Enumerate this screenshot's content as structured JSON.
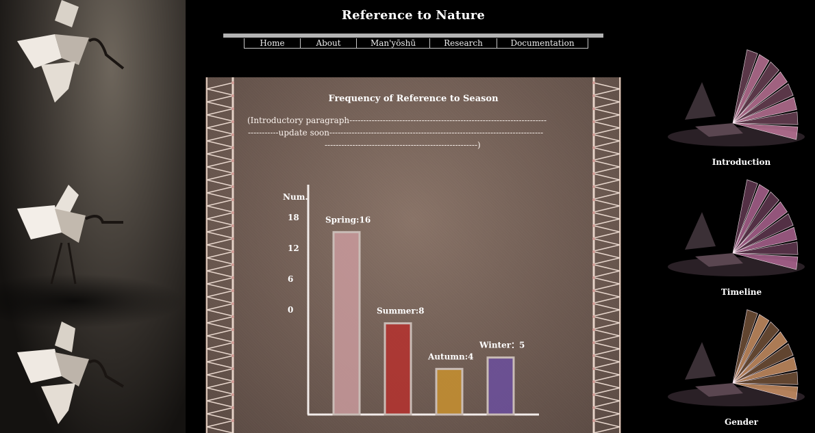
{
  "site": {
    "title": "Reference to Nature"
  },
  "nav": {
    "items": [
      {
        "label": "Home"
      },
      {
        "label": "About"
      },
      {
        "label": "Man'yōshū"
      },
      {
        "label": "Research"
      },
      {
        "label": "Documentation"
      }
    ]
  },
  "main": {
    "intro_lines": [
      "(Introductory paragraph-----------------------------------------------------------------------",
      "-----------update soon-----------------------------------------------------------------------------",
      "-------------------------------------------------------)"
    ]
  },
  "chart_data": {
    "type": "bar",
    "title": "Frequency of Reference to Season",
    "ylabel": "Num.",
    "y_ticks": [
      "18",
      "12",
      "6",
      "0"
    ],
    "categories": [
      "Spring",
      "Summer",
      "Autumn",
      "Winter"
    ],
    "values": [
      16,
      8,
      4,
      5
    ],
    "data_labels": [
      "Spring:16",
      "Summer:8",
      "Autumn:4",
      "Winter：5"
    ],
    "colors": [
      "#c99a9c",
      "#b5312e",
      "#c8902f",
      "#6b4f9d"
    ],
    "ylim": [
      0,
      18
    ],
    "grid": false,
    "legend": "none"
  },
  "sidebar": {
    "items": [
      {
        "label": "Introduction",
        "icon": "origami-crane-image",
        "tint": "#c87aa0"
      },
      {
        "label": "Timeline",
        "icon": "origami-crane-image",
        "tint": "#b86a9a"
      },
      {
        "label": "Gender",
        "icon": "origami-crane-image",
        "tint": "#d79a6a"
      }
    ]
  }
}
